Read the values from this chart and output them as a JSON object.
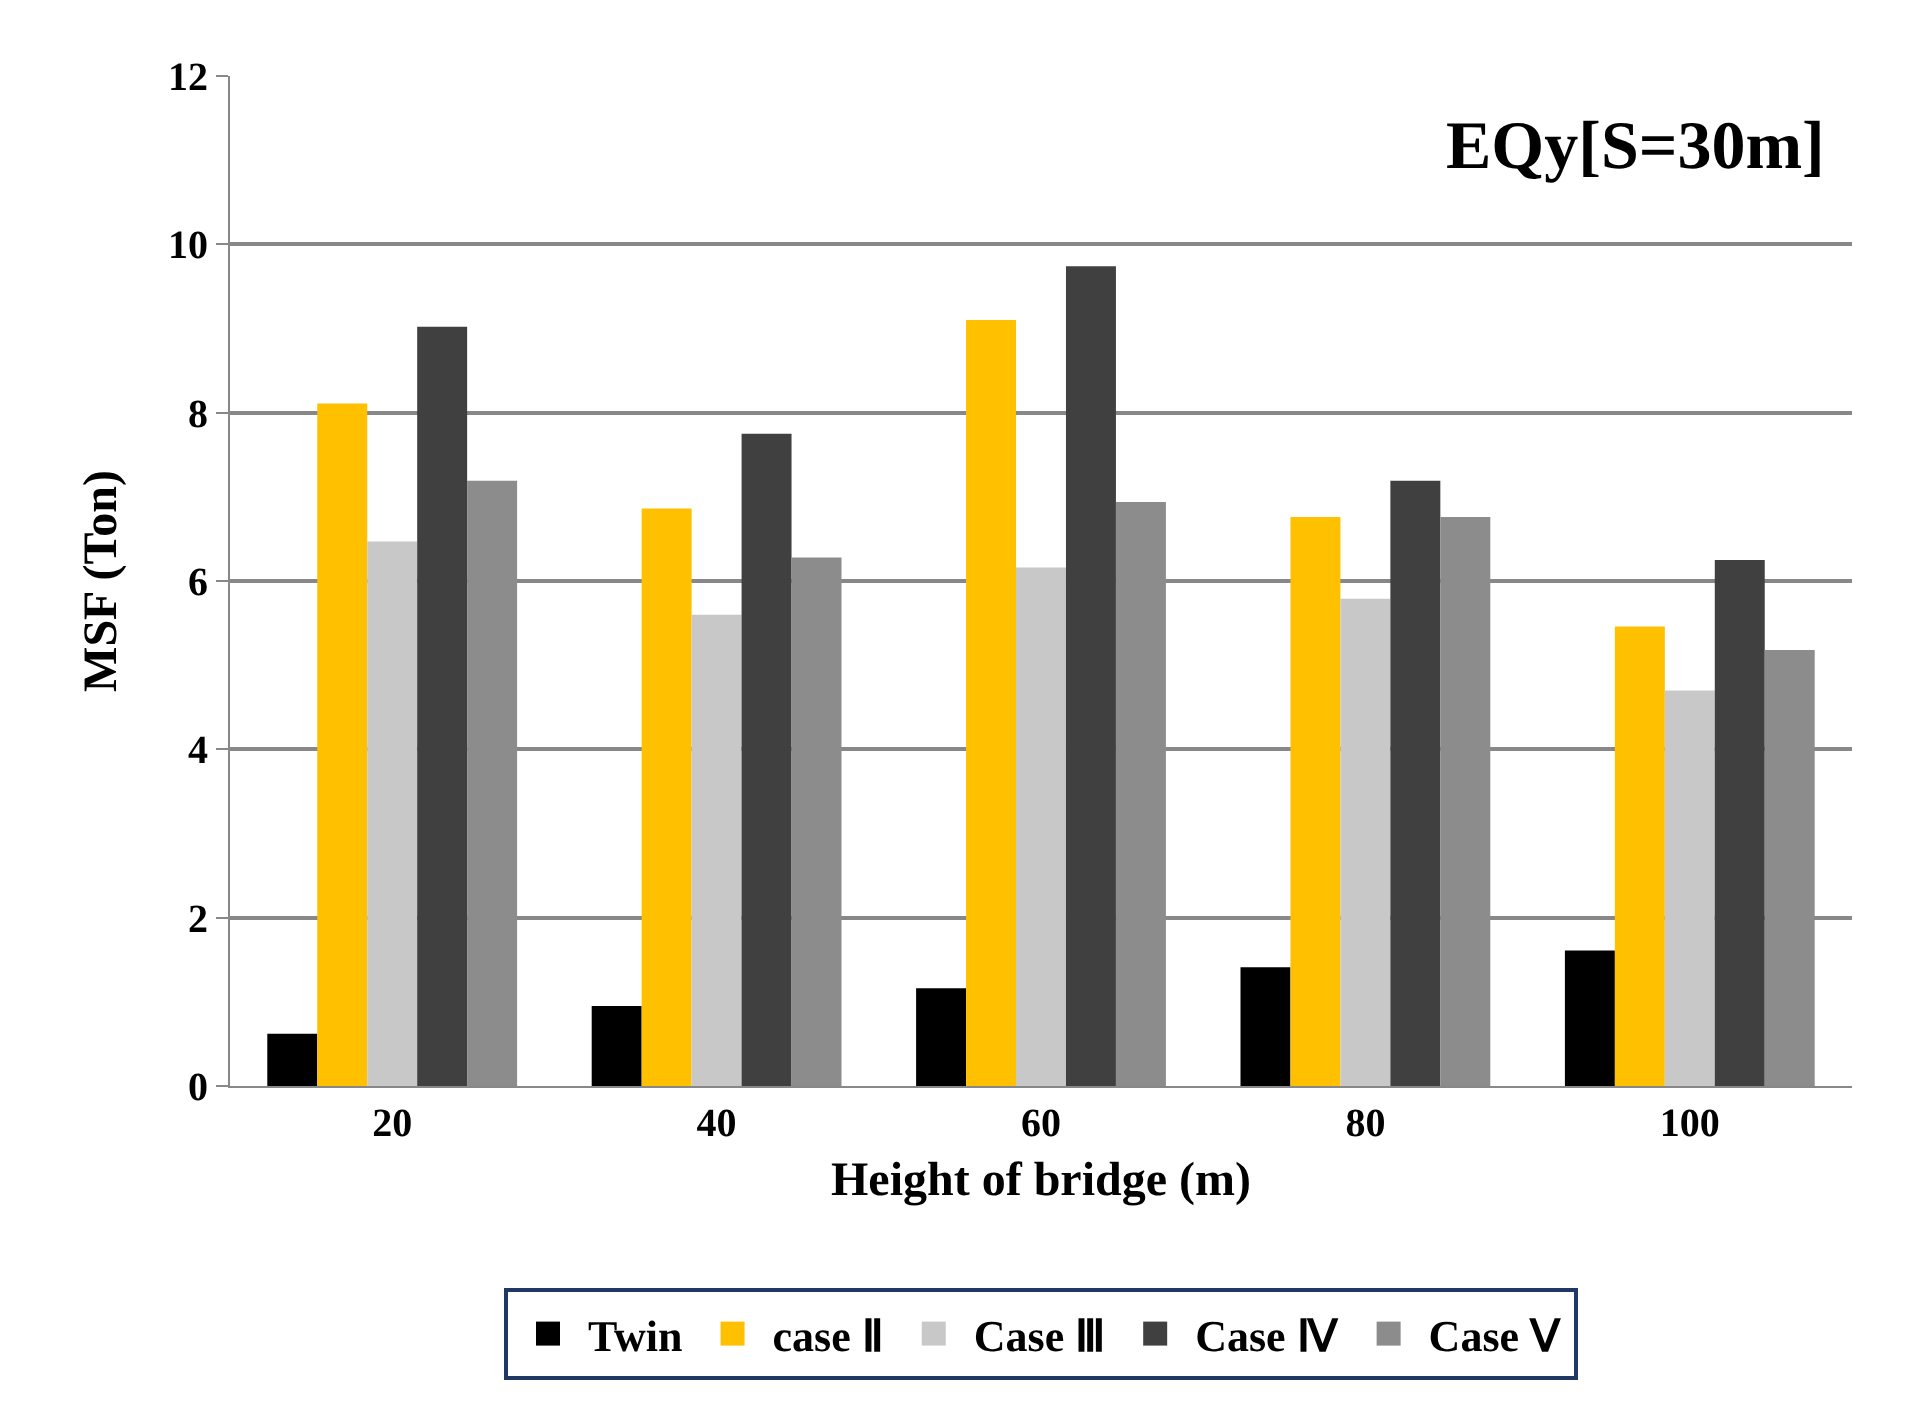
{
  "chart_data": {
    "type": "bar",
    "xlabel": "Height of bridge (m)",
    "ylabel": "MSF (Ton)",
    "annotations": [
      "EQy[S=30m]"
    ],
    "categories": [
      "20",
      "40",
      "60",
      "80",
      "100"
    ],
    "series": [
      {
        "name": "Twin",
        "color": "#000000",
        "values": [
          0.62,
          0.95,
          1.16,
          1.41,
          1.61
        ]
      },
      {
        "name": "case Ⅱ",
        "color": "#ffc000",
        "values": [
          8.11,
          6.86,
          9.1,
          6.76,
          5.46
        ]
      },
      {
        "name": "Case Ⅲ",
        "color": "#c8c8c8",
        "values": [
          6.47,
          5.6,
          6.16,
          5.79,
          4.7
        ]
      },
      {
        "name": "Case Ⅳ",
        "color": "#404040",
        "values": [
          9.02,
          7.75,
          9.74,
          7.19,
          6.25
        ]
      },
      {
        "name": "Case Ⅴ",
        "color": "#8c8c8c",
        "values": [
          7.19,
          6.28,
          6.94,
          6.76,
          5.18
        ]
      }
    ],
    "ylim": [
      0,
      12
    ],
    "yticks": [
      0,
      2,
      4,
      6,
      8,
      10,
      12
    ],
    "grid": "y",
    "legend": "bottom"
  }
}
